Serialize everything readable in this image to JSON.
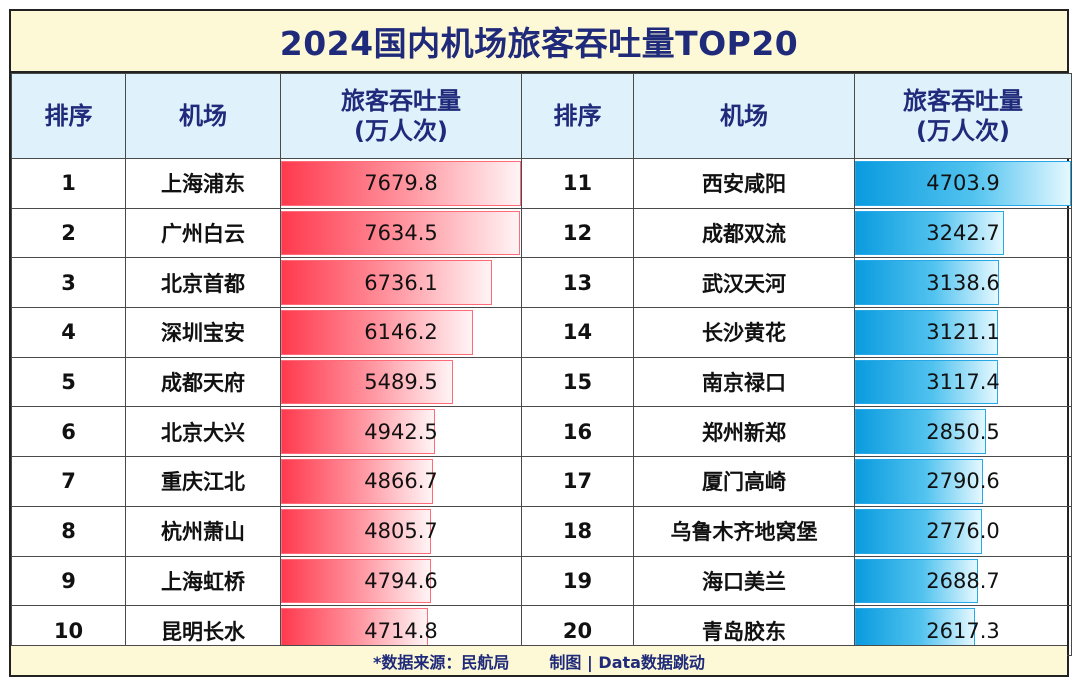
{
  "title": "2024国内机场旅客吞吐量TOP20",
  "headers": {
    "rank": "排序",
    "airport": "机场",
    "throughput_line1": "旅客吞吐量",
    "throughput_line2": "(万人次)"
  },
  "colors": {
    "left_bar": "#ff3a4e",
    "right_bar": "#0a9bdf",
    "right_airport_text": "#8a2be2",
    "title": "#1f2a7a"
  },
  "chart_data": {
    "type": "table",
    "title": "2024国内机场旅客吞吐量TOP20",
    "value_max": 7679.8,
    "rows": [
      {
        "rank": "1",
        "airport": "上海浦东",
        "value": 7679.8,
        "label": "7679.8"
      },
      {
        "rank": "2",
        "airport": "广州白云",
        "value": 7634.5,
        "label": "7634.5"
      },
      {
        "rank": "3",
        "airport": "北京首都",
        "value": 6736.1,
        "label": "6736.1"
      },
      {
        "rank": "4",
        "airport": "深圳宝安",
        "value": 6146.2,
        "label": "6146.2"
      },
      {
        "rank": "5",
        "airport": "成都天府",
        "value": 5489.5,
        "label": "5489.5"
      },
      {
        "rank": "6",
        "airport": "北京大兴",
        "value": 4942.5,
        "label": "4942.5"
      },
      {
        "rank": "7",
        "airport": "重庆江北",
        "value": 4866.7,
        "label": "4866.7"
      },
      {
        "rank": "8",
        "airport": "杭州萧山",
        "value": 4805.7,
        "label": "4805.7"
      },
      {
        "rank": "9",
        "airport": "上海虹桥",
        "value": 4794.6,
        "label": "4794.6"
      },
      {
        "rank": "10",
        "airport": "昆明长水",
        "value": 4714.8,
        "label": "4714.8"
      },
      {
        "rank": "11",
        "airport": "西安咸阳",
        "value": 4703.9,
        "label": "4703.9"
      },
      {
        "rank": "12",
        "airport": "成都双流",
        "value": 3242.7,
        "label": "3242.7"
      },
      {
        "rank": "13",
        "airport": "武汉天河",
        "value": 3138.6,
        "label": "3138.6"
      },
      {
        "rank": "14",
        "airport": "长沙黄花",
        "value": 3121.1,
        "label": "3121.1"
      },
      {
        "rank": "15",
        "airport": "南京禄口",
        "value": 3117.4,
        "label": "3117.4"
      },
      {
        "rank": "16",
        "airport": "郑州新郑",
        "value": 2850.5,
        "label": "2850.5"
      },
      {
        "rank": "17",
        "airport": "厦门高崎",
        "value": 2790.6,
        "label": "2790.6"
      },
      {
        "rank": "18",
        "airport": "乌鲁木齐地窝堡",
        "value": 2776.0,
        "label": "2776.0"
      },
      {
        "rank": "19",
        "airport": "海口美兰",
        "value": 2688.7,
        "label": "2688.7"
      },
      {
        "rank": "20",
        "airport": "青岛胶东",
        "value": 2617.3,
        "label": "2617.3"
      }
    ],
    "right_group_max": 4703.9
  },
  "footer": {
    "source": "*数据来源：民航局",
    "credit": "制图 | Data数据跳动"
  }
}
